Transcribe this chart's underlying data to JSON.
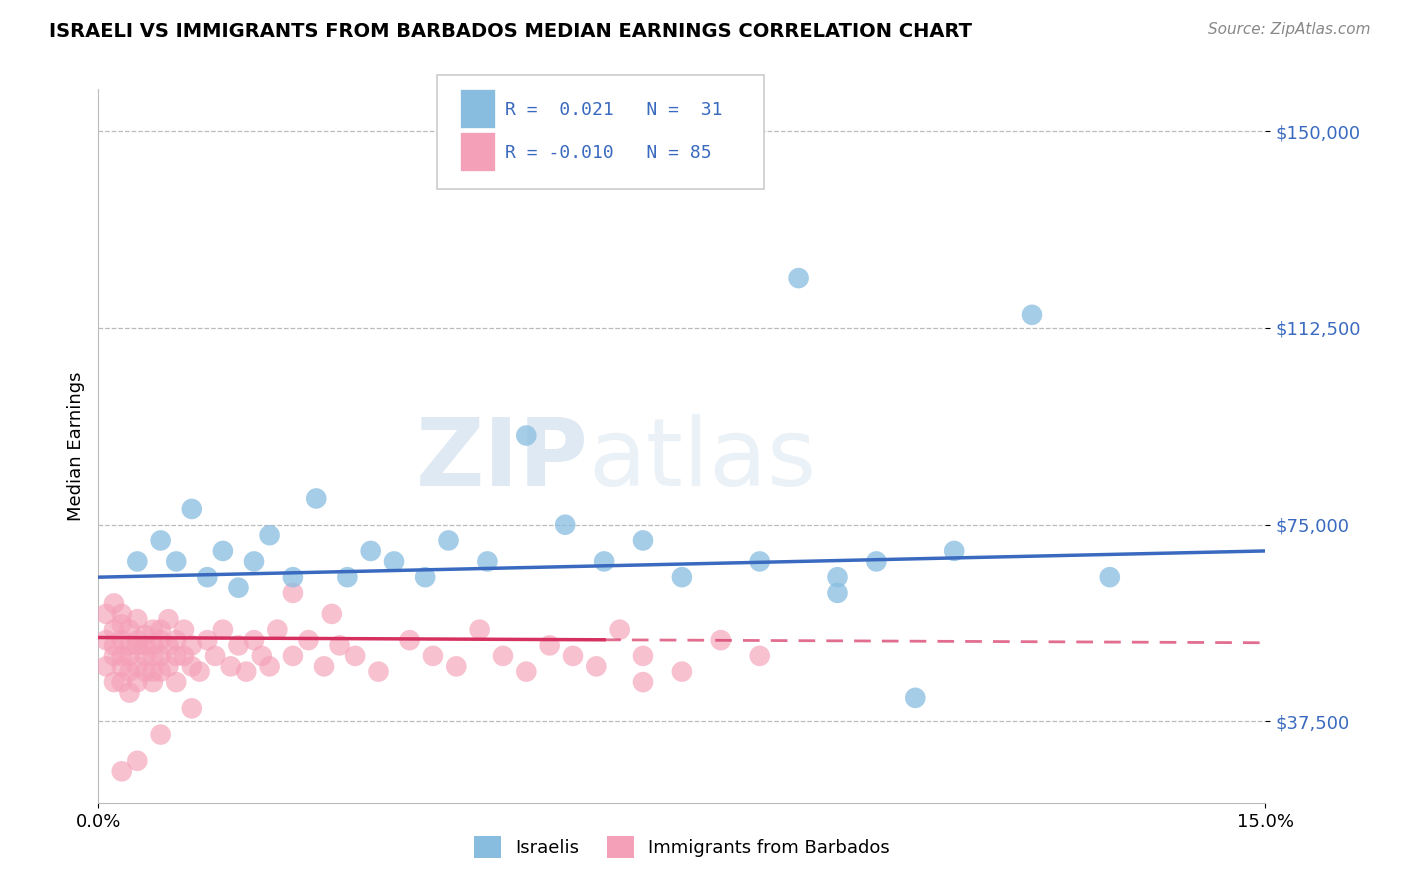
{
  "title": "ISRAELI VS IMMIGRANTS FROM BARBADOS MEDIAN EARNINGS CORRELATION CHART",
  "source": "Source: ZipAtlas.com",
  "ylabel": "Median Earnings",
  "xlim": [
    0.0,
    0.15
  ],
  "ylim": [
    22000,
    158000
  ],
  "yticks": [
    37500,
    75000,
    112500,
    150000
  ],
  "ytick_labels": [
    "$37,500",
    "$75,000",
    "$112,500",
    "$150,000"
  ],
  "xticks": [
    0.0,
    0.15
  ],
  "xtick_labels": [
    "0.0%",
    "15.0%"
  ],
  "watermark_zip": "ZIP",
  "watermark_atlas": "atlas",
  "color_israeli": "#88bde0",
  "color_barbados": "#f4a0b8",
  "color_line_israeli": "#3a6abf",
  "color_line_barbados": "#d63060",
  "background_color": "#ffffff",
  "grid_color": "#bbbbbb",
  "isr_trend_y0": 66000,
  "isr_trend_y1": 70000,
  "barb_trend_solid_x1": 0.065,
  "barb_trend_y0": 53000,
  "barb_trend_y1": 52500,
  "isr_x": [
    0.005,
    0.008,
    0.01,
    0.012,
    0.014,
    0.016,
    0.018,
    0.02,
    0.022,
    0.025,
    0.028,
    0.032,
    0.035,
    0.038,
    0.042,
    0.045,
    0.05,
    0.055,
    0.06,
    0.065,
    0.07,
    0.075,
    0.085,
    0.09,
    0.095,
    0.1,
    0.105,
    0.11,
    0.12,
    0.13,
    0.095
  ],
  "isr_y": [
    68000,
    72000,
    68000,
    78000,
    65000,
    70000,
    63000,
    68000,
    73000,
    65000,
    80000,
    65000,
    70000,
    68000,
    65000,
    72000,
    68000,
    92000,
    75000,
    68000,
    72000,
    65000,
    68000,
    122000,
    65000,
    68000,
    42000,
    70000,
    115000,
    65000,
    62000
  ],
  "barb_x": [
    0.001,
    0.001,
    0.001,
    0.002,
    0.002,
    0.002,
    0.002,
    0.002,
    0.003,
    0.003,
    0.003,
    0.003,
    0.003,
    0.003,
    0.004,
    0.004,
    0.004,
    0.004,
    0.004,
    0.005,
    0.005,
    0.005,
    0.005,
    0.005,
    0.006,
    0.006,
    0.006,
    0.006,
    0.007,
    0.007,
    0.007,
    0.007,
    0.007,
    0.008,
    0.008,
    0.008,
    0.008,
    0.009,
    0.009,
    0.009,
    0.01,
    0.01,
    0.01,
    0.011,
    0.011,
    0.012,
    0.012,
    0.013,
    0.014,
    0.015,
    0.016,
    0.017,
    0.018,
    0.019,
    0.02,
    0.021,
    0.022,
    0.023,
    0.025,
    0.027,
    0.029,
    0.031,
    0.033,
    0.036,
    0.04,
    0.043,
    0.046,
    0.049,
    0.052,
    0.055,
    0.058,
    0.061,
    0.064,
    0.067,
    0.07,
    0.075,
    0.08,
    0.085,
    0.07,
    0.025,
    0.03,
    0.012,
    0.008,
    0.005,
    0.003
  ],
  "barb_y": [
    53000,
    48000,
    58000,
    50000,
    55000,
    45000,
    52000,
    60000,
    48000,
    53000,
    56000,
    50000,
    45000,
    58000,
    52000,
    47000,
    55000,
    50000,
    43000,
    53000,
    48000,
    57000,
    52000,
    45000,
    50000,
    54000,
    47000,
    52000,
    50000,
    55000,
    47000,
    52000,
    45000,
    53000,
    50000,
    47000,
    55000,
    52000,
    48000,
    57000,
    50000,
    45000,
    53000,
    50000,
    55000,
    48000,
    52000,
    47000,
    53000,
    50000,
    55000,
    48000,
    52000,
    47000,
    53000,
    50000,
    48000,
    55000,
    50000,
    53000,
    48000,
    52000,
    50000,
    47000,
    53000,
    50000,
    48000,
    55000,
    50000,
    47000,
    52000,
    50000,
    48000,
    55000,
    50000,
    47000,
    53000,
    50000,
    45000,
    62000,
    58000,
    40000,
    35000,
    30000,
    28000
  ]
}
